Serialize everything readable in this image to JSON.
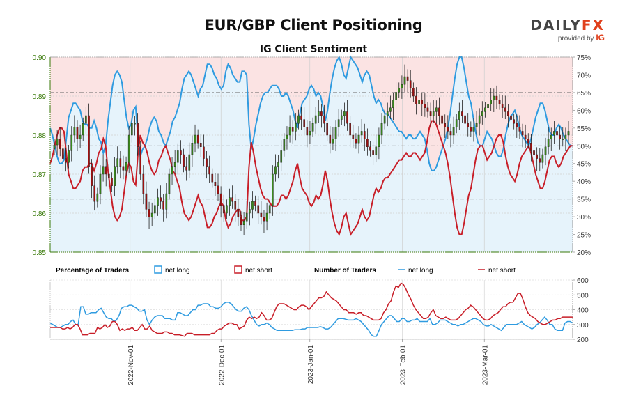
{
  "header": {
    "title": "EUR/GBP Client Positioning",
    "subtitle": "IG Client Sentiment",
    "logo_text_a": "DAILY",
    "logo_text_b": "FX",
    "logo_provided": "provided by",
    "logo_ig": "IG"
  },
  "legend": {
    "pct_title": "Percentage of Traders",
    "pct_long": "net long",
    "pct_short": "net short",
    "num_title": "Number of Traders",
    "num_long": "net long",
    "num_short": "net short"
  },
  "colors": {
    "long": "#2f9be0",
    "short": "#c81e28",
    "long_fill": "#e6f3fb",
    "short_fill": "#fbe3e3",
    "candle_up": "#3a8a1c",
    "candle_down": "#a01010",
    "price_axis": "#3a7a0a"
  },
  "chart_data": [
    {
      "type": "candlestick",
      "title": "EUR/GBP Client Positioning",
      "subtitle": "IG Client Sentiment",
      "y_left_ticks": [
        "0.85",
        "0.86",
        "0.87",
        "0.88",
        "0.89",
        "0.90"
      ],
      "y_left_range": [
        0.85,
        0.9
      ],
      "y_right_ticks": [
        "20%",
        "25%",
        "30%",
        "35%",
        "40%",
        "45%",
        "50%",
        "55%",
        "60%",
        "65%",
        "70%",
        "75%"
      ],
      "y_right_range": [
        20,
        75
      ],
      "x_ticks": [
        "2022-Nov-01",
        "2022-Dec-01",
        "2023-Jan-01",
        "2023-Feb-01",
        "2023-Mar-01"
      ],
      "reference_lines_pct": [
        65,
        50,
        35
      ],
      "net_long_pct": [
        55,
        53,
        50,
        47,
        45,
        45,
        46,
        52,
        58,
        60,
        62,
        62,
        61,
        60,
        57,
        56,
        56,
        55,
        55,
        57,
        55,
        52,
        51,
        48,
        50,
        57,
        62,
        67,
        70,
        71,
        70,
        68,
        63,
        58,
        55,
        56,
        60,
        61,
        52,
        47,
        49,
        50,
        52,
        55,
        57,
        58,
        57,
        54,
        53,
        51,
        50,
        52,
        54,
        57,
        58,
        60,
        62,
        66,
        69,
        70,
        71,
        70,
        68,
        66,
        64,
        66,
        67,
        70,
        73,
        73,
        72,
        70,
        69,
        67,
        66,
        67,
        71,
        73,
        72,
        70,
        69,
        68,
        68,
        71,
        71,
        70,
        56,
        49,
        52,
        56,
        59,
        62,
        64,
        65,
        65,
        66,
        67,
        67,
        67,
        66,
        64,
        64,
        65,
        64,
        62,
        60,
        57,
        55,
        59,
        62,
        63,
        64,
        66,
        67,
        66,
        64,
        65,
        64,
        61,
        57,
        60,
        65,
        69,
        72,
        74,
        75,
        73,
        70,
        69,
        72,
        75,
        74,
        73,
        72,
        70,
        68,
        70,
        71,
        70,
        67,
        64,
        62,
        63,
        62,
        60,
        59,
        59,
        58,
        57,
        56,
        55,
        54,
        54,
        53,
        52,
        53,
        53,
        52,
        52,
        53,
        54,
        53,
        52,
        49,
        45,
        43,
        43,
        44,
        46,
        48,
        50,
        52,
        55,
        59,
        64,
        69,
        73,
        75,
        75,
        72,
        68,
        64,
        62,
        58,
        54,
        51,
        50,
        50,
        52,
        54,
        53,
        52,
        50,
        48,
        47,
        47,
        49,
        53,
        56,
        58,
        59,
        60,
        58,
        55,
        53,
        52,
        51,
        50,
        52,
        55,
        58,
        60,
        62,
        62,
        60,
        57,
        54,
        53,
        53,
        55,
        56,
        55,
        53,
        52,
        51,
        50,
        50
      ],
      "net_short_pct": [
        45,
        47,
        50,
        53,
        55,
        55,
        54,
        48,
        42,
        40,
        38,
        38,
        39,
        40,
        43,
        44,
        44,
        45,
        45,
        43,
        45,
        48,
        49,
        52,
        50,
        43,
        38,
        33,
        30,
        29,
        30,
        32,
        37,
        42,
        45,
        44,
        40,
        39,
        48,
        53,
        51,
        50,
        48,
        45,
        43,
        42,
        43,
        46,
        47,
        49,
        50,
        48,
        46,
        43,
        42,
        40,
        38,
        34,
        31,
        30,
        29,
        30,
        32,
        34,
        36,
        34,
        33,
        30,
        27,
        27,
        28,
        30,
        31,
        33,
        34,
        33,
        29,
        27,
        28,
        30,
        31,
        32,
        32,
        29,
        29,
        30,
        44,
        51,
        48,
        44,
        41,
        38,
        36,
        35,
        35,
        34,
        33,
        33,
        33,
        34,
        36,
        36,
        35,
        36,
        38,
        40,
        43,
        45,
        41,
        38,
        37,
        36,
        34,
        33,
        34,
        36,
        35,
        36,
        39,
        43,
        40,
        35,
        31,
        28,
        26,
        25,
        27,
        30,
        31,
        28,
        25,
        26,
        27,
        28,
        30,
        32,
        30,
        29,
        30,
        33,
        36,
        38,
        37,
        38,
        40,
        41,
        41,
        42,
        43,
        44,
        45,
        46,
        46,
        47,
        48,
        47,
        47,
        48,
        48,
        47,
        46,
        47,
        48,
        51,
        55,
        57,
        57,
        56,
        54,
        52,
        50,
        48,
        45,
        41,
        36,
        31,
        27,
        25,
        25,
        28,
        32,
        36,
        38,
        42,
        46,
        49,
        50,
        50,
        48,
        46,
        47,
        48,
        50,
        52,
        53,
        53,
        51,
        47,
        44,
        42,
        41,
        40,
        42,
        45,
        47,
        48,
        49,
        50,
        48,
        45,
        42,
        40,
        38,
        38,
        40,
        43,
        46,
        47,
        47,
        45,
        44,
        45,
        47,
        48,
        49,
        50,
        50
      ],
      "candles_close": [
        0.8775,
        0.879,
        0.8765,
        0.874,
        0.873,
        0.876,
        0.88,
        0.882,
        0.879,
        0.88,
        0.883,
        0.885,
        0.872,
        0.867,
        0.863,
        0.865,
        0.87,
        0.872,
        0.87,
        0.869,
        0.867,
        0.872,
        0.874,
        0.872,
        0.871,
        0.873,
        0.88,
        0.883,
        0.883,
        0.877,
        0.87,
        0.865,
        0.861,
        0.859,
        0.86,
        0.862,
        0.864,
        0.863,
        0.861,
        0.865,
        0.87,
        0.872,
        0.873,
        0.876,
        0.875,
        0.872,
        0.871,
        0.875,
        0.878,
        0.88,
        0.878,
        0.877,
        0.874,
        0.872,
        0.87,
        0.868,
        0.867,
        0.865,
        0.862,
        0.86,
        0.862,
        0.864,
        0.863,
        0.861,
        0.859,
        0.857,
        0.858,
        0.86,
        0.861,
        0.863,
        0.862,
        0.86,
        0.859,
        0.858,
        0.86,
        0.862,
        0.87,
        0.872,
        0.873,
        0.876,
        0.879,
        0.88,
        0.882,
        0.881,
        0.883,
        0.885,
        0.884,
        0.882,
        0.88,
        0.881,
        0.883,
        0.885,
        0.886,
        0.885,
        0.883,
        0.88,
        0.878,
        0.879,
        0.882,
        0.884,
        0.885,
        0.886,
        0.883,
        0.88,
        0.879,
        0.878,
        0.88,
        0.881,
        0.879,
        0.877,
        0.876,
        0.875,
        0.877,
        0.88,
        0.883,
        0.885,
        0.886,
        0.887,
        0.889,
        0.891,
        0.892,
        0.893,
        0.895,
        0.894,
        0.892,
        0.89,
        0.888,
        0.889,
        0.888,
        0.887,
        0.886,
        0.885,
        0.886,
        0.887,
        0.885,
        0.883,
        0.882,
        0.881,
        0.88,
        0.882,
        0.884,
        0.886,
        0.885,
        0.883,
        0.882,
        0.881,
        0.882,
        0.883,
        0.885,
        0.886,
        0.887,
        0.888,
        0.889,
        0.89,
        0.889,
        0.888,
        0.887,
        0.886,
        0.885,
        0.884,
        0.883,
        0.882,
        0.881,
        0.88,
        0.879,
        0.878,
        0.876,
        0.875,
        0.874,
        0.873,
        0.875,
        0.877,
        0.879,
        0.88,
        0.881,
        0.88,
        0.879,
        0.879,
        0.88,
        0.881
      ]
    },
    {
      "type": "line",
      "legend": [
        "net long",
        "net short"
      ],
      "y_ticks": [
        "200",
        "300",
        "400",
        "500",
        "600"
      ],
      "y_range": [
        200,
        600
      ],
      "x_ticks": [
        "2022-Nov-01",
        "2022-Dec-01",
        "2023-Jan-01",
        "2023-Feb-01",
        "2023-Mar-01"
      ],
      "net_long_count": [
        310,
        300,
        290,
        280,
        280,
        290,
        300,
        300,
        320,
        330,
        300,
        300,
        420,
        420,
        370,
        370,
        380,
        380,
        380,
        400,
        410,
        380,
        350,
        340,
        340,
        320,
        330,
        360,
        410,
        420,
        420,
        430,
        430,
        420,
        410,
        390,
        390,
        400,
        330,
        300,
        330,
        350,
        360,
        360,
        360,
        340,
        340,
        340,
        330,
        330,
        380,
        380,
        370,
        360,
        360,
        380,
        400,
        400,
        430,
        430,
        440,
        440,
        440,
        420,
        420,
        410,
        410,
        420,
        440,
        450,
        450,
        440,
        420,
        400,
        390,
        390,
        410,
        420,
        400,
        360,
        330,
        300,
        290,
        300,
        300,
        310,
        300,
        280,
        270,
        260,
        260,
        260,
        260,
        260,
        260,
        260,
        265,
        265,
        265,
        270,
        270,
        280,
        280,
        280,
        280,
        280,
        285,
        280,
        270,
        270,
        280,
        300,
        320,
        340,
        340,
        340,
        335,
        330,
        330,
        330,
        340,
        330,
        320,
        300,
        280,
        260,
        230,
        220,
        220,
        260,
        300,
        320,
        340,
        360,
        360,
        340,
        320,
        320,
        340,
        340,
        320,
        320,
        330,
        330,
        340,
        320,
        320,
        320,
        320,
        340,
        300,
        300,
        310,
        330,
        330,
        330,
        320,
        310,
        300,
        300,
        290,
        300,
        300,
        310,
        320,
        330,
        340,
        340,
        330,
        320,
        300,
        290,
        290,
        300,
        290,
        280,
        270,
        260,
        280,
        300,
        300,
        300,
        300,
        300,
        310,
        320,
        300,
        290,
        280,
        270,
        280,
        300,
        310,
        330,
        350,
        330,
        300,
        300,
        270,
        260,
        260,
        260,
        310,
        320,
        320,
        310
      ],
      "net_short_count": [
        280,
        280,
        280,
        280,
        280,
        270,
        270,
        280,
        270,
        280,
        300,
        300,
        270,
        230,
        230,
        230,
        240,
        240,
        240,
        280,
        270,
        280,
        300,
        280,
        290,
        320,
        320,
        300,
        260,
        270,
        260,
        270,
        270,
        280,
        260,
        260,
        280,
        300,
        270,
        270,
        290,
        260,
        250,
        240,
        240,
        240,
        250,
        250,
        240,
        240,
        230,
        230,
        230,
        225,
        220,
        240,
        240,
        240,
        230,
        230,
        230,
        230,
        230,
        230,
        230,
        240,
        240,
        260,
        270,
        270,
        290,
        300,
        310,
        310,
        300,
        300,
        270,
        280,
        290,
        330,
        350,
        340,
        350,
        340,
        350,
        380,
        360,
        330,
        330,
        340,
        380,
        420,
        440,
        440,
        440,
        430,
        420,
        410,
        400,
        400,
        420,
        430,
        430,
        420,
        400,
        420,
        440,
        460,
        480,
        480,
        490,
        520,
        500,
        480,
        470,
        460,
        440,
        420,
        400,
        400,
        380,
        380,
        380,
        370,
        380,
        380,
        360,
        360,
        350,
        340,
        330,
        330,
        330,
        340,
        380,
        400,
        440,
        460,
        520,
        560,
        550,
        580,
        570,
        540,
        500,
        470,
        430,
        400,
        380,
        360,
        340,
        340,
        350,
        380,
        400,
        360,
        350,
        340,
        340,
        350,
        340,
        330,
        330,
        330,
        340,
        360,
        380,
        400,
        410,
        430,
        420,
        400,
        380,
        360,
        340,
        330,
        330,
        340,
        360,
        370,
        380,
        400,
        420,
        420,
        440,
        450,
        450,
        480,
        510,
        510,
        470,
        420,
        380,
        360,
        350,
        340,
        320,
        310,
        300,
        300,
        310,
        320,
        330,
        330,
        340,
        340,
        350,
        350,
        350,
        350,
        350
      ]
    }
  ]
}
